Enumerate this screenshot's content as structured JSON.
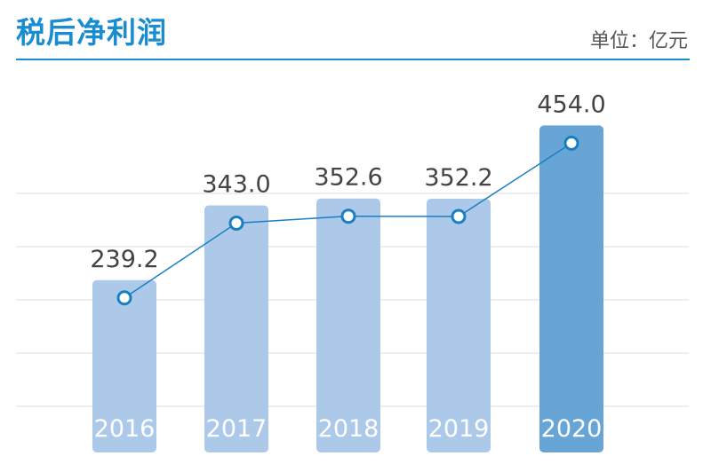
{
  "header": {
    "title": "税后净利润",
    "unit": "单位：亿元"
  },
  "colors": {
    "accent": "#1a8cd0",
    "bar_light": "#adc9ea",
    "bar_highlight": "#66a5d6",
    "line": "#1a7fc0",
    "grid": "#dcdcdc"
  },
  "chart_data": {
    "type": "bar",
    "title": "税后净利润",
    "unit": "单位：亿元",
    "categories": [
      "2016",
      "2017",
      "2018",
      "2019",
      "2020"
    ],
    "series": [
      {
        "name": "税后净利润",
        "values": [
          239.2,
          343.0,
          352.6,
          352.2,
          454.0
        ]
      }
    ],
    "value_labels": [
      "239.2",
      "343.0",
      "352.6",
      "352.2",
      "454.0"
    ],
    "overlay": "line-with-markers",
    "highlight_index": 4,
    "grid": true,
    "xlabel": "",
    "ylabel": ""
  }
}
